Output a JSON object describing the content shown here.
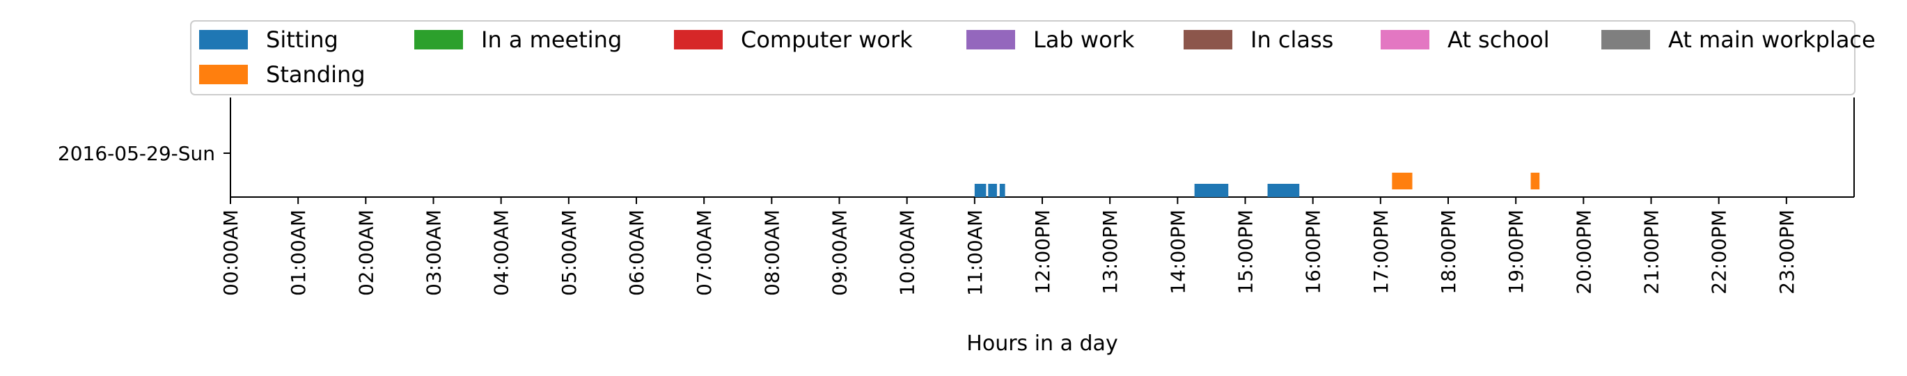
{
  "chart_data": {
    "type": "bar",
    "orientation": "horizontal-timeline",
    "title": "",
    "xlabel": "Hours in a day",
    "ylabel": "",
    "xlim": [
      0,
      24
    ],
    "x_ticks": [
      "00:00AM",
      "01:00AM",
      "02:00AM",
      "03:00AM",
      "04:00AM",
      "05:00AM",
      "06:00AM",
      "07:00AM",
      "08:00AM",
      "09:00AM",
      "10:00AM",
      "11:00AM",
      "12:00PM",
      "13:00PM",
      "14:00PM",
      "15:00PM",
      "16:00PM",
      "17:00PM",
      "18:00PM",
      "19:00PM",
      "20:00PM",
      "21:00PM",
      "22:00PM",
      "23:00PM"
    ],
    "categories": [
      "2016-05-29-Sun"
    ],
    "grid": false,
    "legend_placement": "top",
    "series": [
      {
        "name": "Sitting",
        "color": "#1f77b4",
        "intervals": [
          [
            11.0,
            11.17
          ],
          [
            11.2,
            11.33
          ],
          [
            11.37,
            11.45
          ],
          [
            14.25,
            14.75
          ],
          [
            15.33,
            15.8
          ]
        ]
      },
      {
        "name": "Standing",
        "color": "#ff7f0e",
        "intervals": [
          [
            17.17,
            17.47
          ],
          [
            19.22,
            19.35
          ]
        ]
      },
      {
        "name": "In a meeting",
        "color": "#2ca02c",
        "intervals": []
      },
      {
        "name": "Computer work",
        "color": "#d62728",
        "intervals": []
      },
      {
        "name": "Lab work",
        "color": "#9467bd",
        "intervals": []
      },
      {
        "name": "In class",
        "color": "#8c564b",
        "intervals": []
      },
      {
        "name": "At school",
        "color": "#e377c2",
        "intervals": []
      },
      {
        "name": "At main workplace",
        "color": "#7f7f7f",
        "intervals": []
      }
    ]
  }
}
